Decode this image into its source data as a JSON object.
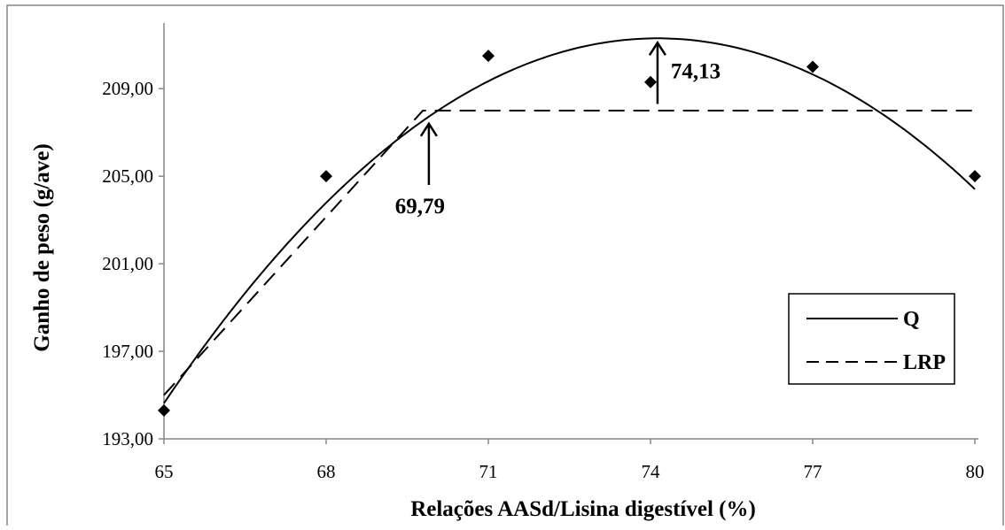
{
  "chart_data": {
    "type": "scatter",
    "xlabel": "Relações AASd/Lisina digestível (%)",
    "ylabel": "Ganho de peso (g/ave)",
    "xlim": [
      65,
      80
    ],
    "ylim": [
      193,
      212
    ],
    "x_ticks": [
      "65",
      "68",
      "71",
      "74",
      "77",
      "80"
    ],
    "y_ticks": [
      "193,00",
      "197,00",
      "201,00",
      "205,00",
      "209,00"
    ],
    "x_tick_values": [
      65,
      68,
      71,
      74,
      77,
      80
    ],
    "y_tick_values": [
      193,
      197,
      201,
      205,
      209
    ],
    "grid": false,
    "legend_position": "bottom-right",
    "observed": {
      "x": [
        65,
        68,
        71,
        74,
        77,
        80
      ],
      "y": [
        194.3,
        205.0,
        210.5,
        209.3,
        210.0,
        205.0
      ]
    },
    "series": [
      {
        "name": "Q",
        "style": "solid",
        "kind": "quadratic",
        "vertex_x": 74.13,
        "vertex_y": 211.3,
        "a": -0.2,
        "range": [
          65,
          80
        ]
      },
      {
        "name": "LRP",
        "style": "dashed",
        "kind": "linear-plateau",
        "break_x": 69.79,
        "plateau_y": 208.0,
        "start": [
          65,
          195.0
        ],
        "range": [
          65,
          80
        ]
      }
    ],
    "annotations": [
      {
        "label": "74,13",
        "x": 74.13,
        "y": 208.3,
        "y_tip": 211.1
      },
      {
        "label": "69,79",
        "x": 69.9,
        "y": 204.6,
        "y_tip": 207.4
      }
    ],
    "colors": {
      "line": "#000000",
      "frame": "#868686"
    }
  }
}
